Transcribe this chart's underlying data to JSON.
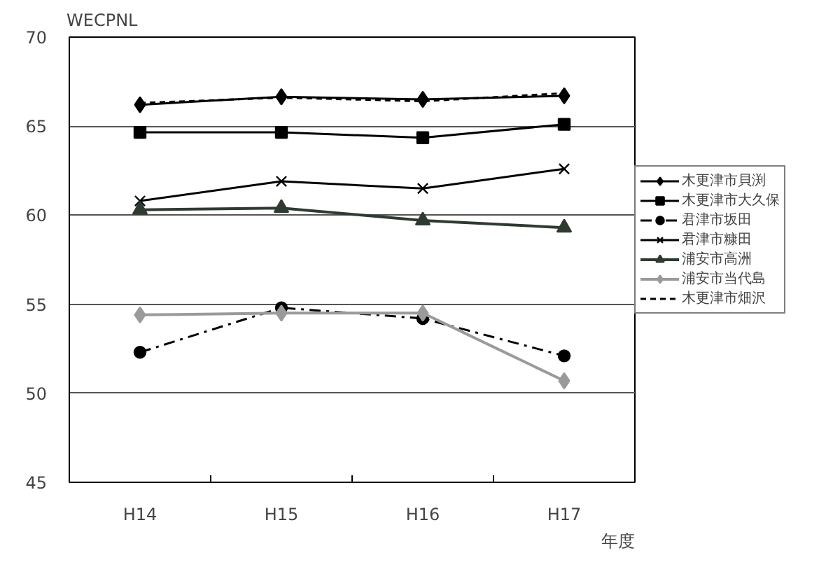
{
  "chart_data": {
    "type": "line",
    "ylabel": "WECPNL",
    "xlabel": "年度",
    "categories": [
      "H14",
      "H15",
      "H16",
      "H17"
    ],
    "ylim": [
      45,
      70
    ],
    "yticks": [
      45,
      50,
      55,
      60,
      65,
      70
    ],
    "grid": "y",
    "legend": "right",
    "series": [
      {
        "name": "木更津市貝渕",
        "color": "#000000",
        "marker": "diamond",
        "line_style": "solid",
        "values": [
          66.2,
          66.65,
          66.5,
          66.7
        ]
      },
      {
        "name": "木更津市大久保",
        "color": "#000000",
        "marker": "square",
        "line_style": "solid",
        "values": [
          64.65,
          64.65,
          64.35,
          65.1
        ]
      },
      {
        "name": "君津市坂田",
        "color": "#000000",
        "marker": "circle",
        "line_style": "dashdot",
        "values": [
          52.3,
          54.8,
          54.2,
          52.1
        ]
      },
      {
        "name": "君津市糠田",
        "color": "#000000",
        "marker": "cross",
        "line_style": "solid",
        "values": [
          60.8,
          61.9,
          61.5,
          62.6
        ]
      },
      {
        "name": "浦安市高洲",
        "color": "#2f3a30",
        "marker": "triangle",
        "line_style": "solid",
        "values": [
          60.3,
          60.4,
          59.7,
          59.3
        ]
      },
      {
        "name": "浦安市当代島",
        "color": "#9a9a9a",
        "marker": "diamond",
        "line_style": "solid",
        "values": [
          54.4,
          54.5,
          54.5,
          50.7
        ]
      },
      {
        "name": "木更津市畑沢",
        "color": "#000000",
        "marker": "none",
        "line_style": "dashed",
        "values": [
          66.3,
          66.6,
          66.4,
          66.85
        ]
      }
    ]
  }
}
